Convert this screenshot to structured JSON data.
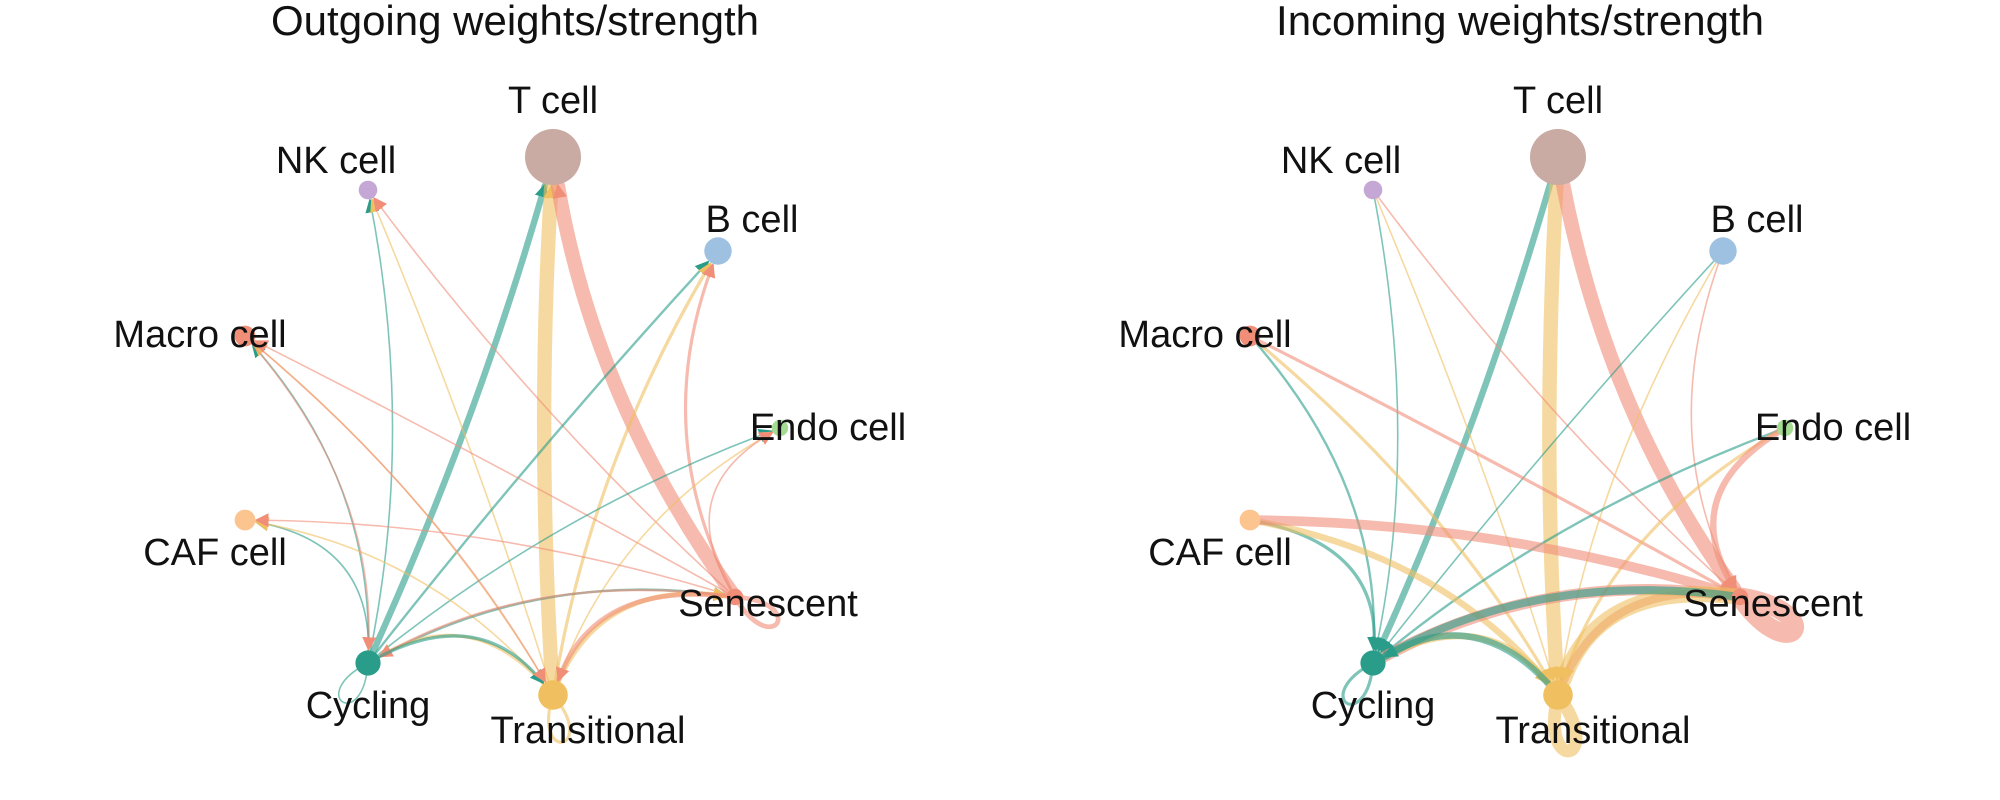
{
  "panels": [
    {
      "title": "Outgoing weights/strength",
      "edge_color_mode": "source",
      "nodes": [
        {
          "id": "t",
          "label": "T cell",
          "weight": 1.0,
          "color": "#C9ABA3"
        },
        {
          "id": "nk",
          "label": "NK cell",
          "weight": 0.15,
          "color": "#C5A7D6"
        },
        {
          "id": "b",
          "label": "B cell",
          "weight": 0.35,
          "color": "#9EC1E2"
        },
        {
          "id": "m",
          "label": "Macro cell",
          "weight": 0.2,
          "color": "#F08E78"
        },
        {
          "id": "e",
          "label": "Endo cell",
          "weight": 0.1,
          "color": "#A6DB94"
        },
        {
          "id": "c",
          "label": "CAF cell",
          "weight": 0.2,
          "color": "#FCC48F"
        },
        {
          "id": "s",
          "label": "Senescent",
          "weight": 0.1,
          "color": "#F08E78"
        },
        {
          "id": "cy",
          "label": "Cycling",
          "weight": 0.3,
          "color": "#2A9D8A"
        },
        {
          "id": "tr",
          "label": "Transitional",
          "weight": 0.4,
          "color": "#F0C060"
        }
      ],
      "edges": [
        {
          "from": "cy",
          "to": "t",
          "weight": 4
        },
        {
          "from": "tr",
          "to": "t",
          "weight": 9
        },
        {
          "from": "s",
          "to": "t",
          "weight": 9
        },
        {
          "from": "cy",
          "to": "nk",
          "weight": 1
        },
        {
          "from": "tr",
          "to": "nk",
          "weight": 1
        },
        {
          "from": "s",
          "to": "nk",
          "weight": 1
        },
        {
          "from": "cy",
          "to": "b",
          "weight": 1.5
        },
        {
          "from": "tr",
          "to": "b",
          "weight": 2
        },
        {
          "from": "s",
          "to": "b",
          "weight": 2
        },
        {
          "from": "cy",
          "to": "m",
          "weight": 1
        },
        {
          "from": "tr",
          "to": "m",
          "weight": 1
        },
        {
          "from": "s",
          "to": "m",
          "weight": 1
        },
        {
          "from": "cy",
          "to": "e",
          "weight": 1
        },
        {
          "from": "tr",
          "to": "e",
          "weight": 1
        },
        {
          "from": "s",
          "to": "e",
          "weight": 1
        },
        {
          "from": "cy",
          "to": "c",
          "weight": 1
        },
        {
          "from": "tr",
          "to": "c",
          "weight": 1
        },
        {
          "from": "s",
          "to": "c",
          "weight": 1
        },
        {
          "from": "cy",
          "to": "s",
          "weight": 1.5
        },
        {
          "from": "tr",
          "to": "s",
          "weight": 3
        },
        {
          "from": "s",
          "to": "s",
          "weight": 3
        },
        {
          "from": "cy",
          "to": "cy",
          "weight": 1
        },
        {
          "from": "tr",
          "to": "cy",
          "weight": 2
        },
        {
          "from": "s",
          "to": "cy",
          "weight": 1.5
        },
        {
          "from": "m",
          "to": "cy",
          "weight": 1
        },
        {
          "from": "cy",
          "to": "tr",
          "weight": 2
        },
        {
          "from": "tr",
          "to": "tr",
          "weight": 2
        },
        {
          "from": "s",
          "to": "tr",
          "weight": 3
        },
        {
          "from": "m",
          "to": "tr",
          "weight": 1
        }
      ]
    },
    {
      "title": "Incoming weights/strength",
      "edge_color_mode": "target",
      "nodes": [
        {
          "id": "t",
          "label": "T cell",
          "weight": 1.0,
          "color": "#C9ABA3"
        },
        {
          "id": "nk",
          "label": "NK cell",
          "weight": 0.15,
          "color": "#C5A7D6"
        },
        {
          "id": "b",
          "label": "B cell",
          "weight": 0.35,
          "color": "#9EC1E2"
        },
        {
          "id": "m",
          "label": "Macro cell",
          "weight": 0.2,
          "color": "#F08E78"
        },
        {
          "id": "e",
          "label": "Endo cell",
          "weight": 0.1,
          "color": "#A6DB94"
        },
        {
          "id": "c",
          "label": "CAF cell",
          "weight": 0.2,
          "color": "#FCC48F"
        },
        {
          "id": "s",
          "label": "Senescent",
          "weight": 0.1,
          "color": "#F08E78"
        },
        {
          "id": "cy",
          "label": "Cycling",
          "weight": 0.3,
          "color": "#2A9D8A"
        },
        {
          "id": "tr",
          "label": "Transitional",
          "weight": 0.4,
          "color": "#F0C060"
        }
      ],
      "edges": [
        {
          "from": "t",
          "to": "cy",
          "weight": 4
        },
        {
          "from": "t",
          "to": "tr",
          "weight": 9
        },
        {
          "from": "t",
          "to": "s",
          "weight": 9
        },
        {
          "from": "nk",
          "to": "cy",
          "weight": 1
        },
        {
          "from": "nk",
          "to": "tr",
          "weight": 1
        },
        {
          "from": "nk",
          "to": "s",
          "weight": 1
        },
        {
          "from": "b",
          "to": "cy",
          "weight": 1
        },
        {
          "from": "b",
          "to": "tr",
          "weight": 1
        },
        {
          "from": "b",
          "to": "s",
          "weight": 1
        },
        {
          "from": "m",
          "to": "cy",
          "weight": 1.5
        },
        {
          "from": "m",
          "to": "tr",
          "weight": 2
        },
        {
          "from": "m",
          "to": "s",
          "weight": 2
        },
        {
          "from": "e",
          "to": "cy",
          "weight": 1.5
        },
        {
          "from": "e",
          "to": "tr",
          "weight": 2
        },
        {
          "from": "e",
          "to": "s",
          "weight": 4
        },
        {
          "from": "c",
          "to": "cy",
          "weight": 2
        },
        {
          "from": "c",
          "to": "tr",
          "weight": 4
        },
        {
          "from": "c",
          "to": "s",
          "weight": 6
        },
        {
          "from": "cy",
          "to": "s",
          "weight": 7
        },
        {
          "from": "cy",
          "to": "tr",
          "weight": 4
        },
        {
          "from": "cy",
          "to": "cy",
          "weight": 2
        },
        {
          "from": "tr",
          "to": "s",
          "weight": 5
        },
        {
          "from": "tr",
          "to": "tr",
          "weight": 8
        },
        {
          "from": "tr",
          "to": "cy",
          "weight": 4
        },
        {
          "from": "s",
          "to": "s",
          "weight": 12
        },
        {
          "from": "s",
          "to": "tr",
          "weight": 10
        },
        {
          "from": "s",
          "to": "cy",
          "weight": 5
        }
      ]
    }
  ]
}
